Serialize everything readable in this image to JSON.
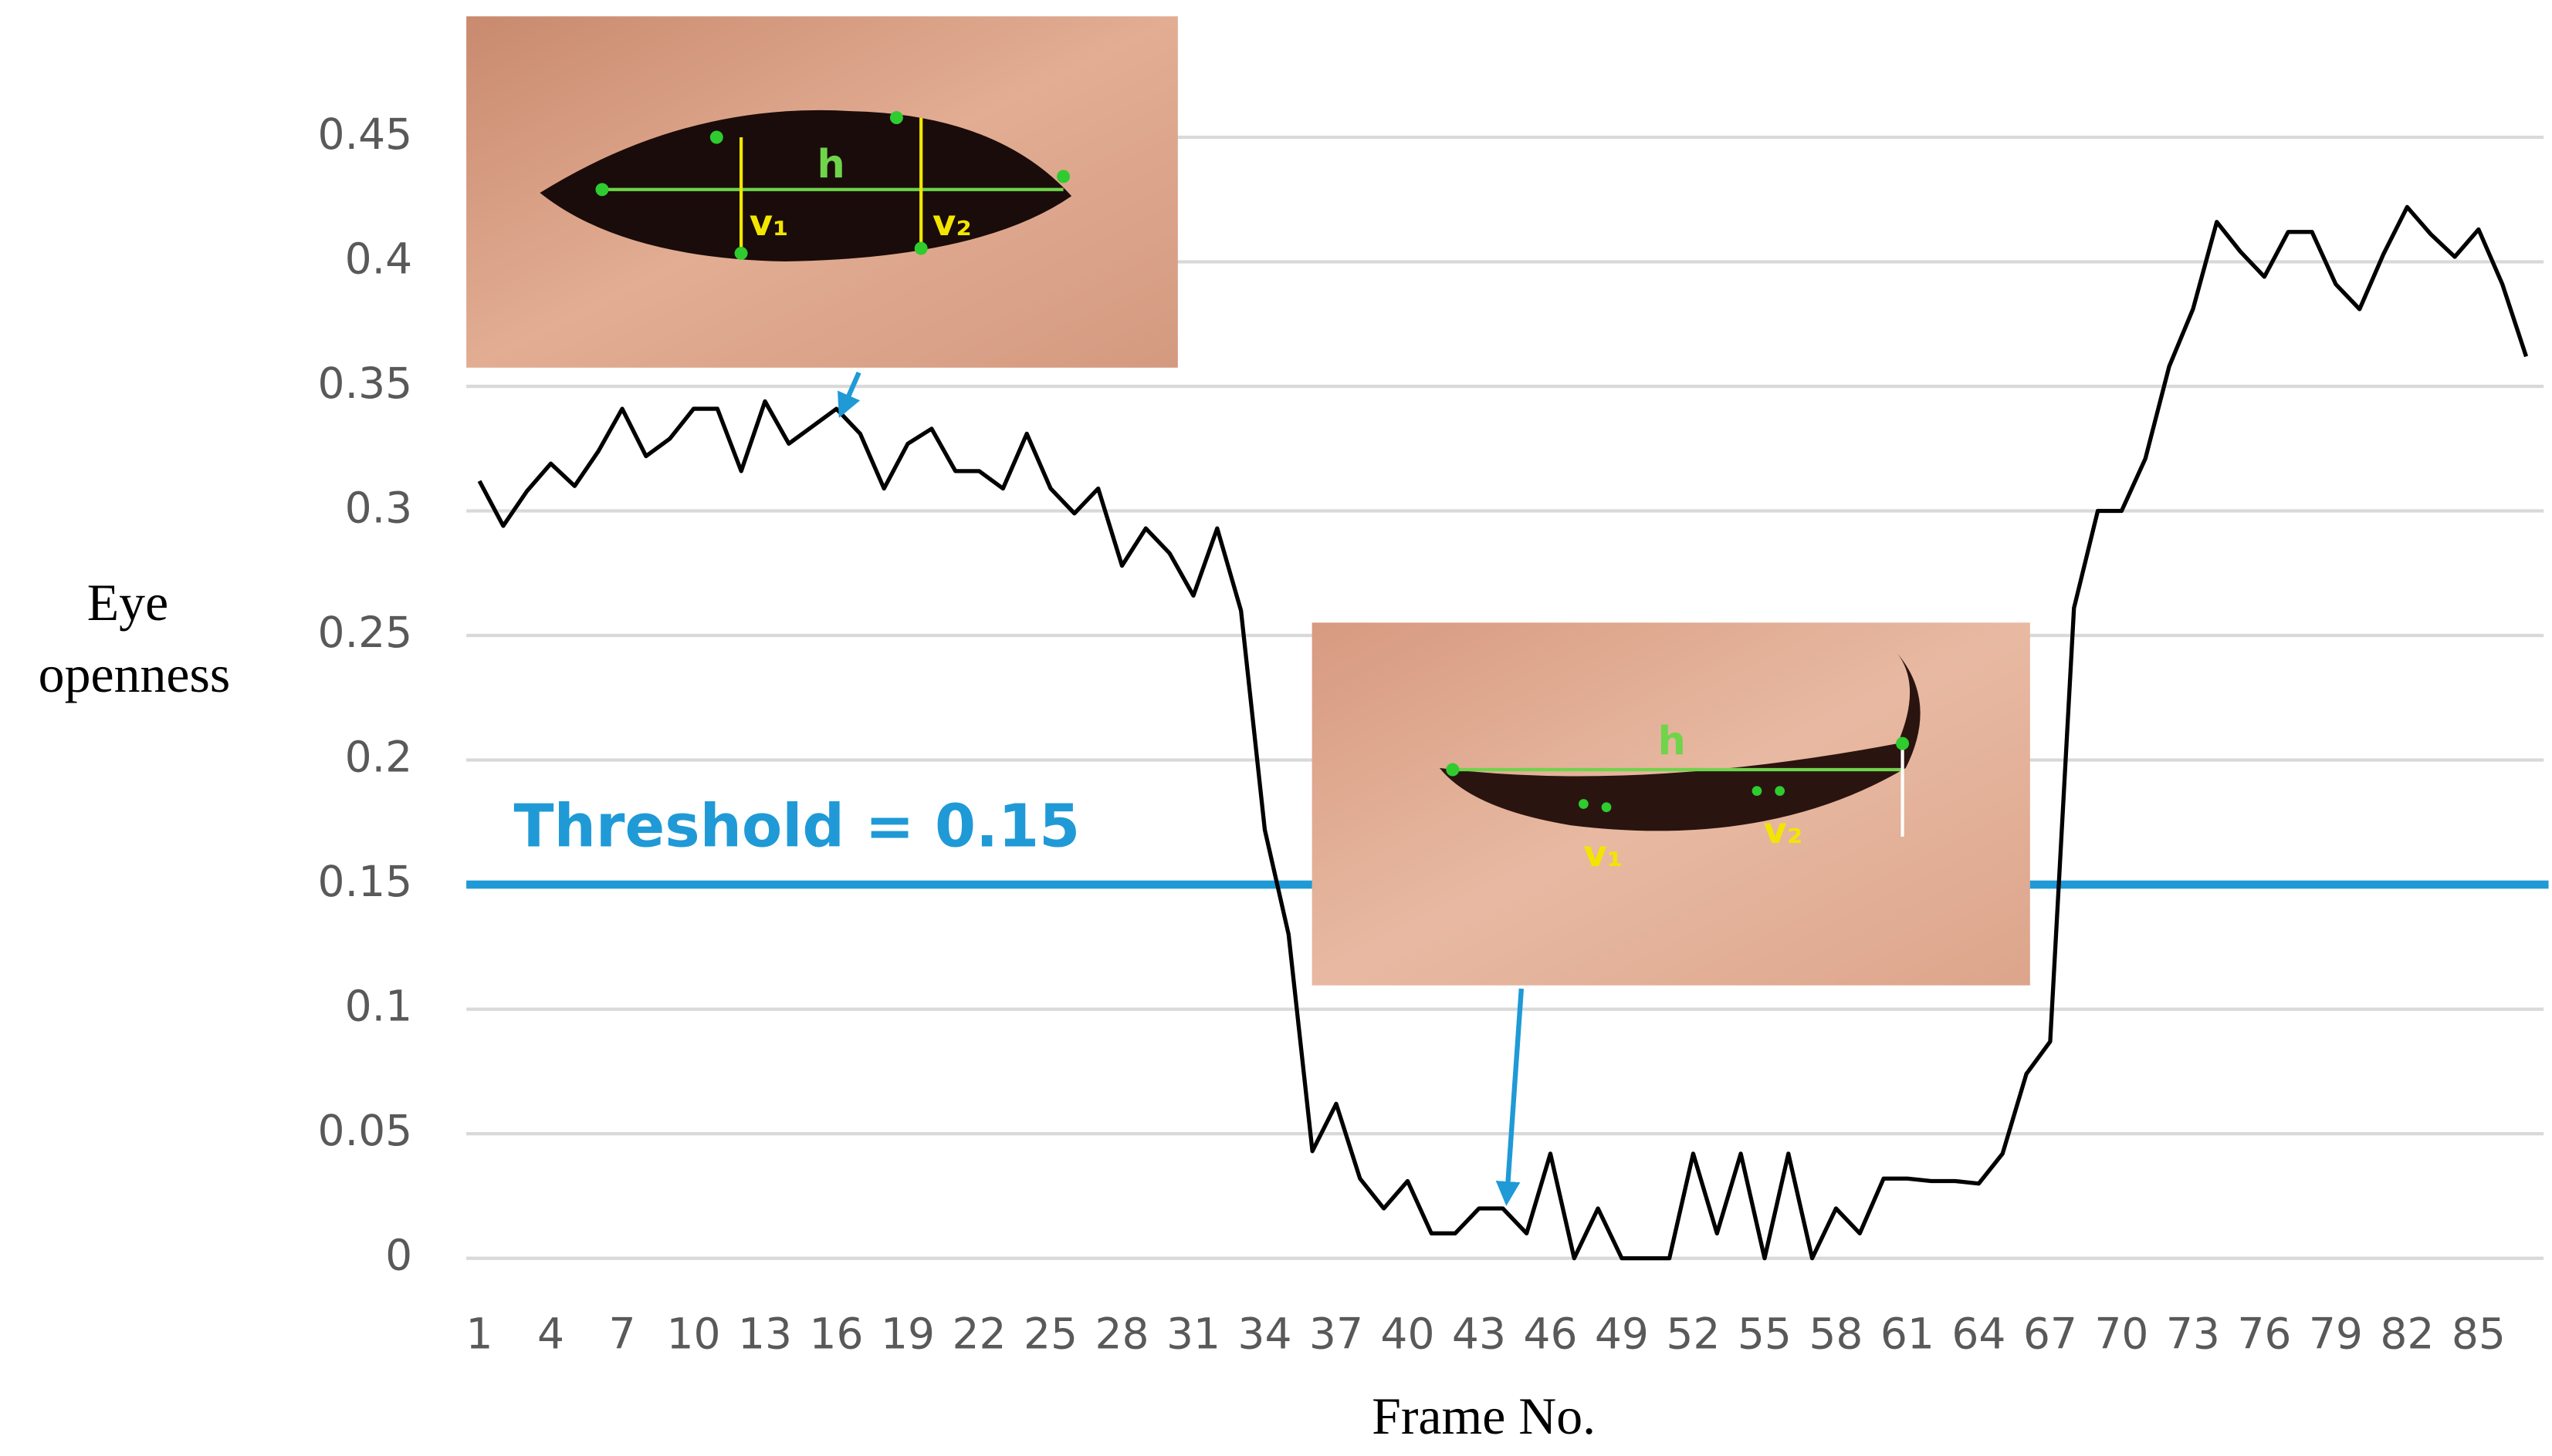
{
  "chart_data": {
    "type": "line",
    "ylabel": [
      "Eye",
      "openness"
    ],
    "xlabel": "Frame No.",
    "categories": [
      1,
      null,
      null,
      4,
      null,
      null,
      7,
      null,
      null,
      10,
      null,
      null,
      13,
      null,
      null,
      16,
      null,
      null,
      19,
      null,
      null,
      22,
      null,
      null,
      25,
      null,
      null,
      28,
      null,
      null,
      31,
      null,
      null,
      34,
      null,
      null,
      37,
      null,
      null,
      40,
      null,
      null,
      43,
      null,
      null,
      46,
      null,
      null,
      49,
      null,
      null,
      52,
      null,
      null,
      55,
      null,
      null,
      58,
      null,
      null,
      61,
      null,
      null,
      64,
      null,
      null,
      67,
      null,
      null,
      70,
      null,
      null,
      73,
      null,
      null,
      76,
      null,
      null,
      79,
      null,
      null,
      82,
      null,
      null,
      85,
      null,
      null
    ],
    "values": [
      0.312,
      0.294,
      0.308,
      0.319,
      0.31,
      0.324,
      0.341,
      0.322,
      0.329,
      0.341,
      0.341,
      0.316,
      0.344,
      0.327,
      0.334,
      0.341,
      0.331,
      0.309,
      0.327,
      0.333,
      0.316,
      0.316,
      0.309,
      0.331,
      0.309,
      0.299,
      0.309,
      0.278,
      0.293,
      0.283,
      0.266,
      0.293,
      0.26,
      0.172,
      0.13,
      0.043,
      0.062,
      0.032,
      0.02,
      0.031,
      0.01,
      0.01,
      0.02,
      0.02,
      0.01,
      0.042,
      0,
      0.02,
      0,
      0,
      0,
      0.042,
      0.01,
      0.042,
      0,
      0.042,
      0,
      0.02,
      0.01,
      0.032,
      0.032,
      0.031,
      0.031,
      0.03,
      0.042,
      0.074,
      0.087,
      0.261,
      0.3,
      0.3,
      0.321,
      0.358,
      0.381,
      0.416,
      0.404,
      0.394,
      0.412,
      0.412,
      0.391,
      0.381,
      0.403,
      0.422,
      0.411,
      0.402,
      0.413,
      0.391,
      0.362
    ],
    "color": "#000000",
    "ylim": [
      0,
      0.45
    ],
    "yticks": [
      0,
      0.05,
      0.1,
      0.15,
      0.2,
      0.25,
      0.3,
      0.35,
      0.4,
      0.45
    ],
    "grid": true,
    "threshold": {
      "value": 0.15,
      "label": "Threshold = 0.15",
      "color": "#1f9ad6"
    },
    "insets": [
      {
        "labels": [
          "h",
          "v₁",
          "v₂"
        ]
      },
      {
        "labels": [
          "h",
          "v₁",
          "v₂"
        ]
      }
    ]
  }
}
